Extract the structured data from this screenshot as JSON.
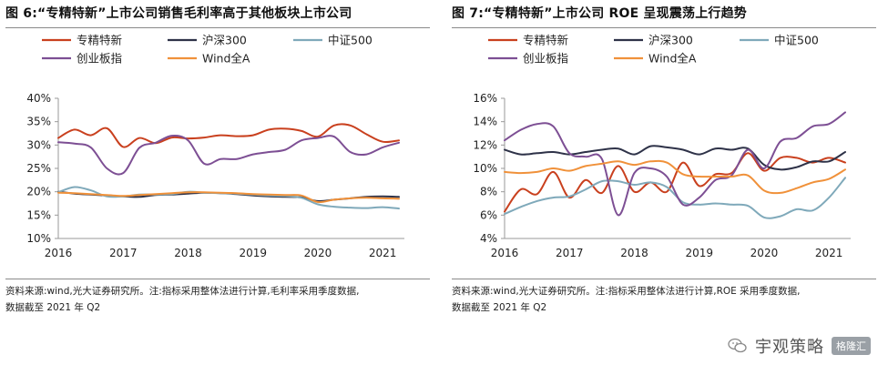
{
  "watermark": {
    "brand": "宇观策略",
    "badge": "格隆汇"
  },
  "chart_data": [
    {
      "type": "line",
      "title": "图 6:“专精特新”上市公司销售毛利率高于其他板块上市公司",
      "note_line1": "资料来源:wind,光大证券研究所。注:指标采用整体法进行计算,毛利率采用季度数据,",
      "note_line2": "数据截至 2021 年 Q2",
      "xlabel": "",
      "ylabel": "",
      "xlim": [
        2016,
        2021.25
      ],
      "ylim": [
        10,
        40
      ],
      "xticks": [
        2016,
        2017,
        2018,
        2019,
        2020,
        2021
      ],
      "yticks": [
        10,
        15,
        20,
        25,
        30,
        35,
        40
      ],
      "ytick_format": "percent",
      "grid": false,
      "legend": "top",
      "legend_layout": [
        [
          "专精特新",
          "沪深300",
          "中证500"
        ],
        [
          "创业板指",
          "Wind全A"
        ]
      ],
      "series": [
        {
          "name": "专精特新",
          "color": "#c9401e",
          "x": [
            2016.0,
            2016.25,
            2016.5,
            2016.75,
            2017.0,
            2017.25,
            2017.5,
            2017.75,
            2018.0,
            2018.25,
            2018.5,
            2018.75,
            2019.0,
            2019.25,
            2019.5,
            2019.75,
            2020.0,
            2020.25,
            2020.5,
            2020.75,
            2021.0,
            2021.25
          ],
          "y": [
            31.5,
            33.3,
            32.1,
            33.6,
            29.6,
            31.5,
            30.4,
            31.6,
            31.4,
            31.6,
            32.1,
            31.9,
            32.1,
            33.3,
            33.5,
            33.0,
            31.8,
            34.2,
            34.2,
            32.3,
            30.7,
            31.0
          ]
        },
        {
          "name": "沪深300",
          "color": "#2e3248",
          "x": [
            2016.0,
            2016.25,
            2016.5,
            2016.75,
            2017.0,
            2017.25,
            2017.5,
            2017.75,
            2018.0,
            2018.25,
            2018.5,
            2018.75,
            2019.0,
            2019.25,
            2019.5,
            2019.75,
            2020.0,
            2020.25,
            2020.5,
            2020.75,
            2021.0,
            2021.25
          ],
          "y": [
            20.0,
            19.6,
            19.4,
            19.2,
            19.0,
            18.9,
            19.3,
            19.4,
            19.6,
            19.8,
            19.7,
            19.5,
            19.2,
            19.0,
            18.9,
            18.8,
            18.0,
            18.3,
            18.6,
            18.9,
            19.0,
            18.9
          ]
        },
        {
          "name": "中证500",
          "color": "#7fa9ba",
          "x": [
            2016.0,
            2016.25,
            2016.5,
            2016.75,
            2017.0,
            2017.25,
            2017.5,
            2017.75,
            2018.0,
            2018.25,
            2018.5,
            2018.75,
            2019.0,
            2019.25,
            2019.5,
            2019.75,
            2020.0,
            2020.25,
            2020.5,
            2020.75,
            2021.0,
            2021.25
          ],
          "y": [
            19.9,
            21.0,
            20.3,
            19.0,
            19.0,
            19.4,
            19.4,
            19.5,
            20.0,
            19.8,
            19.7,
            19.6,
            19.4,
            19.2,
            19.1,
            18.7,
            17.3,
            16.8,
            16.6,
            16.5,
            16.7,
            16.4
          ]
        },
        {
          "name": "创业板指",
          "color": "#7d4f94",
          "x": [
            2016.0,
            2016.25,
            2016.5,
            2016.75,
            2017.0,
            2017.25,
            2017.5,
            2017.75,
            2018.0,
            2018.25,
            2018.5,
            2018.75,
            2019.0,
            2019.25,
            2019.5,
            2019.75,
            2020.0,
            2020.25,
            2020.5,
            2020.75,
            2021.0,
            2021.25
          ],
          "y": [
            30.6,
            30.3,
            29.5,
            25.0,
            24.0,
            29.4,
            30.5,
            32.0,
            31.0,
            26.0,
            27.0,
            27.0,
            28.0,
            28.5,
            29.0,
            31.0,
            31.5,
            31.8,
            28.5,
            28.0,
            29.5,
            30.5
          ]
        },
        {
          "name": "Wind全A",
          "color": "#f0913a",
          "x": [
            2016.0,
            2016.25,
            2016.5,
            2016.75,
            2017.0,
            2017.25,
            2017.5,
            2017.75,
            2018.0,
            2018.25,
            2018.5,
            2018.75,
            2019.0,
            2019.25,
            2019.5,
            2019.75,
            2020.0,
            2020.25,
            2020.5,
            2020.75,
            2021.0,
            2021.25
          ],
          "y": [
            19.8,
            19.7,
            19.5,
            19.3,
            19.1,
            19.3,
            19.5,
            19.7,
            19.9,
            19.9,
            19.8,
            19.7,
            19.5,
            19.4,
            19.3,
            19.2,
            17.8,
            18.3,
            18.6,
            18.7,
            18.6,
            18.5
          ]
        }
      ]
    },
    {
      "type": "line",
      "title": "图 7:“专精特新”上市公司 ROE 呈现震荡上行趋势",
      "note_line1": "资料来源:wind,光大证券研究所。注:指标采用整体法进行计算,ROE 采用季度数据,",
      "note_line2": "数据截至 2021 年 Q2",
      "xlabel": "",
      "ylabel": "",
      "xlim": [
        2016,
        2021.25
      ],
      "ylim": [
        4,
        16
      ],
      "xticks": [
        2016,
        2017,
        2018,
        2019,
        2020,
        2021
      ],
      "yticks": [
        4,
        6,
        8,
        10,
        12,
        14,
        16
      ],
      "ytick_format": "percent",
      "grid": false,
      "legend": "top",
      "legend_layout": [
        [
          "专精特新",
          "沪深300",
          "中证500"
        ],
        [
          "创业板指",
          "Wind全A"
        ]
      ],
      "series": [
        {
          "name": "专精特新",
          "color": "#c9401e",
          "x": [
            2016.0,
            2016.25,
            2016.5,
            2016.75,
            2017.0,
            2017.25,
            2017.5,
            2017.75,
            2018.0,
            2018.25,
            2018.5,
            2018.75,
            2019.0,
            2019.25,
            2019.5,
            2019.75,
            2020.0,
            2020.25,
            2020.5,
            2020.75,
            2021.0,
            2021.25
          ],
          "y": [
            6.3,
            8.2,
            7.8,
            9.7,
            7.5,
            9.0,
            7.9,
            10.2,
            8.0,
            8.8,
            8.0,
            10.5,
            8.5,
            9.5,
            9.6,
            11.3,
            9.8,
            10.9,
            10.9,
            10.5,
            10.9,
            10.5
          ]
        },
        {
          "name": "沪深300",
          "color": "#2e3248",
          "x": [
            2016.0,
            2016.25,
            2016.5,
            2016.75,
            2017.0,
            2017.25,
            2017.5,
            2017.75,
            2018.0,
            2018.25,
            2018.5,
            2018.75,
            2019.0,
            2019.25,
            2019.5,
            2019.75,
            2020.0,
            2020.25,
            2020.5,
            2020.75,
            2021.0,
            2021.25
          ],
          "y": [
            11.6,
            11.2,
            11.3,
            11.4,
            11.2,
            11.4,
            11.6,
            11.7,
            11.2,
            11.9,
            11.8,
            11.6,
            11.2,
            11.7,
            11.6,
            11.7,
            10.3,
            9.9,
            10.1,
            10.6,
            10.6,
            11.4
          ]
        },
        {
          "name": "中证500",
          "color": "#7fa9ba",
          "x": [
            2016.0,
            2016.25,
            2016.5,
            2016.75,
            2017.0,
            2017.25,
            2017.5,
            2017.75,
            2018.0,
            2018.25,
            2018.5,
            2018.75,
            2019.0,
            2019.25,
            2019.5,
            2019.75,
            2020.0,
            2020.25,
            2020.5,
            2020.75,
            2021.0,
            2021.25
          ],
          "y": [
            6.1,
            6.7,
            7.2,
            7.5,
            7.6,
            8.2,
            8.9,
            8.9,
            8.6,
            8.8,
            8.4,
            7.1,
            6.9,
            7.0,
            6.9,
            6.8,
            5.8,
            5.9,
            6.5,
            6.4,
            7.5,
            9.2
          ]
        },
        {
          "name": "创业板指",
          "color": "#7d4f94",
          "x": [
            2016.0,
            2016.25,
            2016.5,
            2016.75,
            2017.0,
            2017.25,
            2017.5,
            2017.75,
            2018.0,
            2018.25,
            2018.5,
            2018.75,
            2019.0,
            2019.25,
            2019.5,
            2019.75,
            2020.0,
            2020.25,
            2020.5,
            2020.75,
            2021.0,
            2021.25
          ],
          "y": [
            12.4,
            13.3,
            13.8,
            13.6,
            11.3,
            11.0,
            10.8,
            6.0,
            9.6,
            10.0,
            9.3,
            6.9,
            7.5,
            9.0,
            9.4,
            11.6,
            10.0,
            12.3,
            12.6,
            13.6,
            13.8,
            14.8
          ]
        },
        {
          "name": "Wind全A",
          "color": "#f0913a",
          "x": [
            2016.0,
            2016.25,
            2016.5,
            2016.75,
            2017.0,
            2017.25,
            2017.5,
            2017.75,
            2018.0,
            2018.25,
            2018.5,
            2018.75,
            2019.0,
            2019.25,
            2019.5,
            2019.75,
            2020.0,
            2020.25,
            2020.5,
            2020.75,
            2021.0,
            2021.25
          ],
          "y": [
            9.7,
            9.6,
            9.7,
            10.0,
            9.8,
            10.2,
            10.4,
            10.6,
            10.3,
            10.6,
            10.5,
            9.5,
            9.3,
            9.3,
            9.3,
            9.4,
            8.1,
            7.9,
            8.3,
            8.8,
            9.1,
            9.9
          ]
        }
      ]
    }
  ]
}
